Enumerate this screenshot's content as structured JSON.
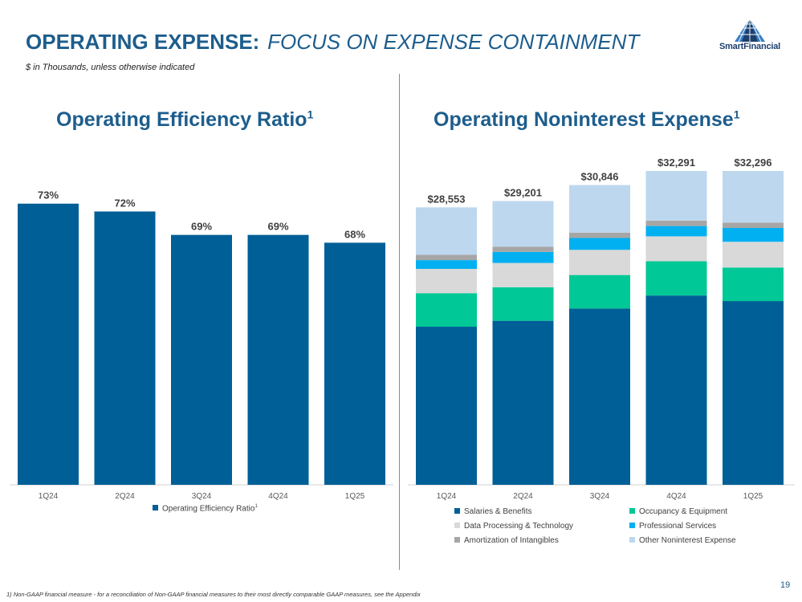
{
  "header": {
    "title_main": "Operating Expense:",
    "title_sub": "Focus on Expense Containment",
    "units_note": "$ in Thousands, unless otherwise indicated"
  },
  "logo": {
    "name": "SmartFinancial",
    "icon": "triangle-lattice-logo"
  },
  "left_panel": {
    "title": "Operating Efficiency Ratio",
    "title_sup": "1"
  },
  "right_panel": {
    "title": "Operating Noninterest Expense",
    "title_sup": "1"
  },
  "chart_data": [
    {
      "type": "bar",
      "title": "Operating Efficiency Ratio",
      "categories": [
        "1Q24",
        "2Q24",
        "3Q24",
        "4Q24",
        "1Q25"
      ],
      "series": [
        {
          "name": "Operating Efficiency Ratio",
          "values": [
            73,
            72,
            69,
            69,
            68
          ],
          "labels": [
            "73%",
            "72%",
            "69%",
            "69%",
            "68%"
          ]
        }
      ],
      "legend_sup": "1",
      "ylim": [
        37,
        74
      ],
      "xlabel": "",
      "ylabel": "",
      "grid": false,
      "legend": "bottom"
    },
    {
      "type": "bar",
      "stacked": true,
      "title": "Operating Noninterest Expense",
      "categories": [
        "1Q24",
        "2Q24",
        "3Q24",
        "4Q24",
        "1Q25"
      ],
      "totals": [
        28553,
        29201,
        30846,
        32291,
        32296
      ],
      "total_labels": [
        "$28,553",
        "$29,201",
        "$30,846",
        "$32,291",
        "$32,296"
      ],
      "series": [
        {
          "name": "Salaries & Benefits",
          "values": [
            16270,
            16880,
            18140,
            19480,
            18910
          ]
        },
        {
          "name": "Occupancy & Equipment",
          "values": [
            3450,
            3450,
            3450,
            3530,
            3450
          ]
        },
        {
          "name": "Data Processing & Technology",
          "values": [
            2500,
            2500,
            2590,
            2560,
            2650
          ]
        },
        {
          "name": "Professional Services",
          "values": [
            900,
            1130,
            1220,
            1060,
            1420
          ]
        },
        {
          "name": "Amortization of Intangibles",
          "values": [
            550,
            550,
            550,
            550,
            550
          ]
        },
        {
          "name": "Other Noninterest Expense",
          "values": [
            4883,
            4691,
            4896,
            5111,
            5316
          ]
        }
      ],
      "ylim": [
        0,
        33000
      ],
      "xlabel": "",
      "ylabel": "",
      "grid": false,
      "legend": "bottom"
    }
  ],
  "colors": {
    "primary": "#005f96",
    "title": "#1d5d8c",
    "series": [
      "#005f96",
      "#00c896",
      "#d9d9d9",
      "#00b0f0",
      "#a6a6a6",
      "#bdd7ee"
    ]
  },
  "footnote": "1) Non-GAAP financial measure - for a reconciliation of Non-GAAP financial measures to their most directly comparable GAAP measures, see the Appendix",
  "page_number": "19"
}
